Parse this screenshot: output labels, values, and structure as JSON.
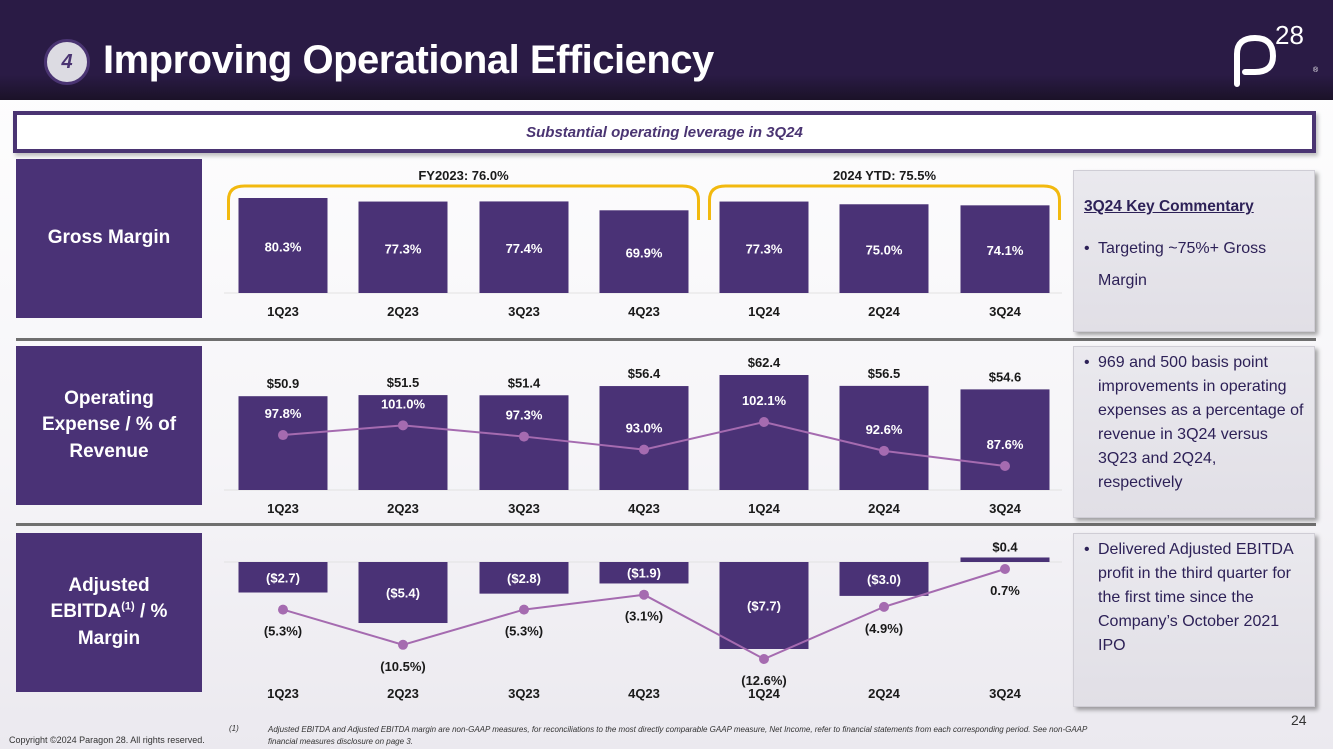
{
  "header": {
    "section_number": "4",
    "title": "Improving Operational Efficiency",
    "logo_main": "p",
    "logo_super": "28",
    "logo_reg": "®"
  },
  "subtitle": "Substantial operating leverage in 3Q24",
  "rows": {
    "gross_margin": {
      "label": "Gross Margin"
    },
    "opex": {
      "label": "Operating Expense / % of Revenue"
    },
    "ebitda": {
      "label_main": "Adjusted EBITDA",
      "label_sup": "(1)",
      "label_tail": " / % Margin"
    }
  },
  "commentary": {
    "heading": "3Q24 Key Commentary",
    "gross_margin_bullet": "Targeting ~75%+ Gross Margin",
    "opex_bullet": "969 and 500 basis point improvements in operating expenses as a percentage of revenue in 3Q24 versus 3Q23 and 2Q24, respectively",
    "ebitda_bullet": "Delivered Adjusted EBITDA profit in the third quarter for the first time since the Company’s October 2021 IPO",
    "bullet_char": "•"
  },
  "footer": {
    "copyright": "Copyright ©2024 Paragon 28. All rights reserved.",
    "footnote_marker": "(1)",
    "footnote": "Adjusted EBITDA and Adjusted EBITDA margin are non-GAAP measures, for reconciliations to the most directly comparable GAAP measure, Net Income, refer to financial statements from each corresponding period. See non-GAAP financial measures disclosure on page 3.",
    "page_number": "24"
  },
  "colors": {
    "bar": "#4a3276",
    "line": "#a56bb0",
    "bracket": "#f2b90f",
    "header_bg": "#2a1b45"
  },
  "chart_data": [
    {
      "type": "bar",
      "title": "Gross Margin",
      "categories": [
        "1Q23",
        "2Q23",
        "3Q23",
        "4Q23",
        "1Q24",
        "2Q24",
        "3Q24"
      ],
      "values": [
        80.3,
        77.3,
        77.4,
        69.9,
        77.3,
        75.0,
        74.1
      ],
      "value_labels": [
        "80.3%",
        "77.3%",
        "77.4%",
        "69.9%",
        "77.3%",
        "75.0%",
        "74.1%"
      ],
      "groups": [
        {
          "label": "FY2023: 76.0%",
          "from": 0,
          "to": 3
        },
        {
          "label": "2024 YTD: 75.5%",
          "from": 4,
          "to": 6
        }
      ],
      "ylabel": "",
      "xlabel": "",
      "grid": false
    },
    {
      "type": "bar",
      "title": "Operating Expense / % of Revenue",
      "categories": [
        "1Q23",
        "2Q23",
        "3Q23",
        "4Q23",
        "1Q24",
        "2Q24",
        "3Q24"
      ],
      "series": [
        {
          "name": "Operating Expense ($M)",
          "kind": "bar",
          "values": [
            50.9,
            51.5,
            51.4,
            56.4,
            62.4,
            56.5,
            54.6
          ],
          "labels": [
            "$50.9",
            "$51.5",
            "$51.4",
            "$56.4",
            "$62.4",
            "$56.5",
            "$54.6"
          ]
        },
        {
          "name": "% of Revenue",
          "kind": "line",
          "values": [
            97.8,
            101.0,
            97.3,
            93.0,
            102.1,
            92.6,
            87.6
          ],
          "labels": [
            "97.8%",
            "101.0%",
            "97.3%",
            "93.0%",
            "102.1%",
            "92.6%",
            "87.6%"
          ]
        }
      ],
      "ylabel": "",
      "xlabel": "",
      "grid": false
    },
    {
      "type": "bar",
      "title": "Adjusted EBITDA / % Margin",
      "categories": [
        "1Q23",
        "2Q23",
        "3Q23",
        "4Q23",
        "1Q24",
        "2Q24",
        "3Q24"
      ],
      "series": [
        {
          "name": "Adjusted EBITDA ($M)",
          "kind": "bar",
          "values": [
            -2.7,
            -5.4,
            -2.8,
            -1.9,
            -7.7,
            -3.0,
            0.4
          ],
          "labels": [
            "($2.7)",
            "($5.4)",
            "($2.8)",
            "($1.9)",
            "($7.7)",
            "($3.0)",
            "$0.4"
          ]
        },
        {
          "name": "% Margin",
          "kind": "line",
          "values": [
            -5.3,
            -10.5,
            -5.3,
            -3.1,
            -12.6,
            -4.9,
            0.7
          ],
          "labels": [
            "(5.3%)",
            "(10.5%)",
            "(5.3%)",
            "(3.1%)",
            "(12.6%)",
            "(4.9%)",
            "0.7%"
          ]
        }
      ],
      "ylabel": "",
      "xlabel": "",
      "grid": false
    }
  ]
}
